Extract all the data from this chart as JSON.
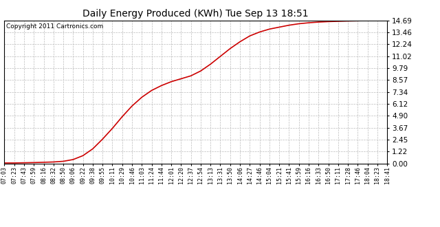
{
  "title": "Daily Energy Produced (KWh) Tue Sep 13 18:51",
  "copyright_text": "Copyright 2011 Cartronics.com",
  "line_color": "#cc0000",
  "background_color": "#ffffff",
  "plot_bg_color": "#ffffff",
  "grid_color": "#bbbbbb",
  "yticks": [
    0.0,
    1.22,
    2.45,
    3.67,
    4.9,
    6.12,
    7.34,
    8.57,
    9.79,
    11.02,
    12.24,
    13.46,
    14.69
  ],
  "ymax": 14.69,
  "ymin": 0.0,
  "xtick_labels": [
    "07:03",
    "07:23",
    "07:43",
    "07:59",
    "08:16",
    "08:32",
    "08:50",
    "09:06",
    "09:22",
    "09:38",
    "09:55",
    "10:11",
    "10:29",
    "10:46",
    "11:03",
    "11:24",
    "11:44",
    "12:01",
    "12:20",
    "12:37",
    "12:54",
    "13:13",
    "13:31",
    "13:50",
    "14:06",
    "14:27",
    "14:46",
    "15:04",
    "15:21",
    "15:41",
    "15:59",
    "16:16",
    "16:33",
    "16:50",
    "17:11",
    "17:28",
    "17:46",
    "18:04",
    "18:23",
    "18:41"
  ],
  "y_values": [
    0.05,
    0.05,
    0.07,
    0.09,
    0.12,
    0.15,
    0.22,
    0.4,
    0.8,
    1.5,
    2.5,
    3.6,
    4.8,
    5.9,
    6.8,
    7.5,
    8.0,
    8.4,
    8.7,
    9.0,
    9.5,
    10.2,
    11.0,
    11.8,
    12.5,
    13.1,
    13.5,
    13.8,
    14.0,
    14.2,
    14.35,
    14.45,
    14.52,
    14.57,
    14.6,
    14.63,
    14.65,
    14.67,
    14.68,
    14.69
  ]
}
